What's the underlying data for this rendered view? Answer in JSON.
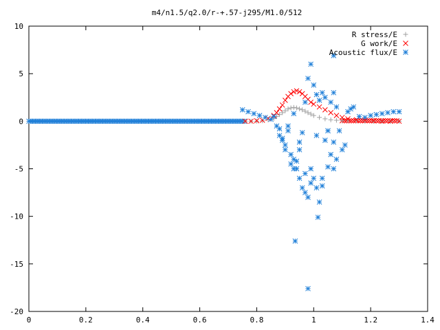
{
  "chart_data": {
    "type": "scatter",
    "title": "m4/n1.5/q2.0/r-+.57-j295/M1.0/512",
    "xlabel": "",
    "ylabel": "",
    "xlim": [
      0,
      1.4
    ],
    "ylim": [
      -20,
      10
    ],
    "x_ticks": [
      "0",
      "0.2",
      "0.4",
      "0.6",
      "0.8",
      "1",
      "1.2",
      "1.4"
    ],
    "y_ticks": [
      "10",
      "5",
      "0",
      "-5",
      "-10",
      "-15",
      "-20"
    ],
    "grid": false,
    "legend_position": "top-right",
    "series": [
      {
        "name": "R stress/E",
        "marker": "plus",
        "color": "#a0a0a0",
        "x": [
          0.76,
          0.78,
          0.8,
          0.82,
          0.84,
          0.86,
          0.87,
          0.88,
          0.89,
          0.9,
          0.91,
          0.92,
          0.93,
          0.94,
          0.95,
          0.96,
          0.97,
          0.98,
          0.99,
          1.0,
          1.02,
          1.04,
          1.06,
          1.08,
          1.1,
          1.12,
          1.15,
          1.18,
          1.21,
          1.24,
          1.27,
          1.3
        ],
        "y": [
          0.0,
          0.0,
          0.0,
          0.05,
          0.15,
          0.3,
          0.5,
          0.7,
          0.9,
          1.1,
          1.3,
          1.4,
          1.45,
          1.4,
          1.3,
          1.2,
          1.05,
          0.9,
          0.75,
          0.6,
          0.4,
          0.25,
          0.15,
          0.1,
          0.05,
          0.05,
          0.05,
          0.0,
          0.0,
          0.0,
          0.0,
          0.0
        ]
      },
      {
        "name": "G work/E",
        "marker": "cross",
        "color": "#ff0000",
        "x": [
          0.76,
          0.78,
          0.8,
          0.82,
          0.84,
          0.86,
          0.87,
          0.88,
          0.89,
          0.9,
          0.91,
          0.92,
          0.93,
          0.94,
          0.95,
          0.96,
          0.97,
          0.98,
          0.99,
          1.0,
          1.02,
          1.04,
          1.06,
          1.08,
          1.1,
          1.12,
          1.15,
          1.18,
          1.21,
          1.24,
          1.27,
          1.3
        ],
        "y": [
          0.0,
          0.0,
          0.05,
          0.1,
          0.3,
          0.6,
          0.9,
          1.3,
          1.7,
          2.2,
          2.6,
          2.9,
          3.1,
          3.2,
          3.1,
          2.9,
          2.6,
          2.3,
          2.0,
          1.8,
          1.5,
          1.2,
          0.9,
          0.6,
          0.4,
          0.25,
          0.15,
          0.1,
          0.05,
          0.0,
          0.0,
          0.0
        ]
      },
      {
        "name": "Acoustic flux/E",
        "marker": "star",
        "color": "#1f7fd8",
        "x": [
          0.75,
          0.77,
          0.79,
          0.81,
          0.83,
          0.85,
          0.86,
          0.87,
          0.88,
          0.89,
          0.9,
          0.91,
          0.92,
          0.93,
          0.94,
          0.95,
          0.96,
          0.97,
          0.98,
          0.99,
          1.0,
          1.01,
          1.02,
          1.03,
          1.04,
          1.05,
          1.06,
          1.07,
          1.08,
          1.09,
          1.1,
          1.11,
          1.12,
          1.13,
          1.14,
          1.16,
          1.18,
          1.2,
          1.22,
          1.24,
          1.26,
          1.28,
          1.3,
          0.88,
          0.9,
          0.92,
          0.93,
          0.94,
          0.95,
          0.96,
          0.97,
          0.98,
          0.99,
          1.0,
          1.01,
          1.02,
          1.03,
          1.04,
          1.05,
          1.06,
          1.07,
          1.08,
          0.89,
          0.91,
          0.93,
          0.95,
          0.97,
          0.99,
          1.01,
          1.03,
          1.05,
          1.07,
          0.935,
          0.98,
          1.015,
          1.07
        ],
        "y": [
          1.2,
          1.0,
          0.8,
          0.6,
          0.4,
          0.2,
          0.5,
          -0.5,
          -1.5,
          -2.0,
          -3.0,
          -1.0,
          -3.5,
          -4.0,
          -5.0,
          -6.0,
          -7.0,
          -7.5,
          -8.0,
          -5.0,
          -6.0,
          -7.0,
          -8.5,
          -6.0,
          -2.0,
          -1.0,
          2.0,
          3.0,
          1.5,
          -1.0,
          -3.0,
          -2.5,
          1.0,
          1.3,
          1.5,
          0.5,
          0.4,
          0.6,
          0.7,
          0.8,
          0.9,
          1.0,
          1.0,
          -0.8,
          -2.5,
          -4.5,
          -5.0,
          -4.2,
          -3.0,
          -1.2,
          2.0,
          4.5,
          6.0,
          3.8,
          2.8,
          2.2,
          3.0,
          2.5,
          -1.0,
          -3.5,
          -5.0,
          -4.0,
          -1.8,
          -0.5,
          0.8,
          -2.2,
          -5.5,
          -6.5,
          -1.5,
          -6.8,
          -4.8,
          -2.2,
          -12.6,
          -17.6,
          -10.1,
          6.9
        ]
      }
    ]
  }
}
